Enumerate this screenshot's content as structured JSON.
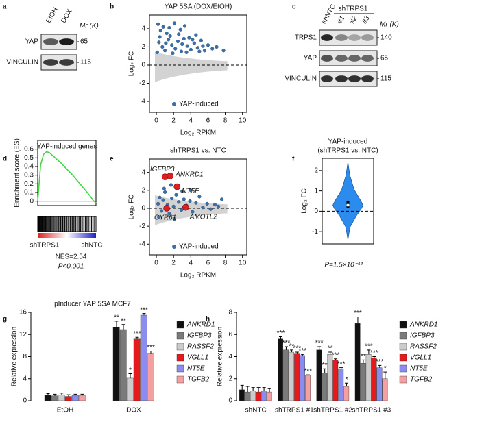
{
  "panel_labels": [
    "a",
    "b",
    "c",
    "d",
    "e",
    "f",
    "g",
    "h"
  ],
  "blot_a": {
    "lanes": [
      "EtOH",
      "DOX"
    ],
    "mr": "Mr (K)",
    "rows": [
      {
        "label": "YAP",
        "mw": 65
      },
      {
        "label": "VINCULIN",
        "mw": 115
      }
    ]
  },
  "blot_c": {
    "group": "shTRPS1",
    "lanes": [
      "shNTC",
      "#1",
      "#2",
      "#3"
    ],
    "mr": "Mr (K)",
    "rows": [
      {
        "label": "TRPS1",
        "mw": 140
      },
      {
        "label": "YAP",
        "mw": 65
      },
      {
        "label": "VINCULIN",
        "mw": 115
      }
    ]
  },
  "chart_data": [
    {
      "type": "scatter",
      "title": "YAP 5SA (DOX/EtOH)",
      "x_label": "Log₂ RPKM",
      "y_label": "Log₂ FC",
      "xlim": [
        -0.8,
        10.5
      ],
      "ylim": [
        -5.2,
        5.5
      ],
      "xticks": [
        0,
        2,
        4,
        6,
        8,
        10
      ],
      "yticks": [
        -4,
        -2,
        0,
        2,
        4
      ],
      "hline": 0,
      "series": [
        {
          "name": "YAP-induced",
          "color": "#3d6fa6",
          "x": [
            0.2,
            0.5,
            0.8,
            1.2,
            1.5,
            2.1,
            2.8,
            3.3,
            0.3,
            0.7,
            1.0,
            1.4,
            1.8,
            2.2,
            2.5,
            2.9,
            3.2,
            3.6,
            4.0,
            4.4,
            4.8,
            5.2,
            5.6,
            6.0,
            6.5,
            7.0,
            7.8,
            0.1,
            0.4,
            1.6,
            2.6,
            3.8,
            4.6,
            5.0,
            1.1,
            1.9,
            3.0,
            3.5,
            4.2,
            5.4
          ],
          "values": [
            4.5,
            3.8,
            4.2,
            3.5,
            4.1,
            4.6,
            3.9,
            4.3,
            2.5,
            2.0,
            1.6,
            2.8,
            2.2,
            1.8,
            2.6,
            1.5,
            2.9,
            2.1,
            1.7,
            2.4,
            1.9,
            2.7,
            1.6,
            2.2,
            1.8,
            2.0,
            1.6,
            1.4,
            3.1,
            3.2,
            3.4,
            3.0,
            3.3,
            1.5,
            2.4,
            1.3,
            2.3,
            1.4,
            2.8,
            2.1
          ]
        }
      ]
    },
    {
      "type": "line",
      "title": "YAP-induced genes",
      "y_label": "Enrichment score (ES)",
      "color": "#44d444",
      "xlim": [
        0,
        100
      ],
      "ylim": [
        -0.05,
        0.7
      ],
      "yticks": [
        0,
        0.1,
        0.2,
        0.3,
        0.4,
        0.5,
        0.6
      ],
      "x": [
        0,
        5,
        10,
        15,
        20,
        30,
        40,
        50,
        60,
        70,
        80,
        90,
        95,
        100
      ],
      "values": [
        0,
        0.42,
        0.54,
        0.57,
        0.56,
        0.5,
        0.44,
        0.37,
        0.3,
        0.22,
        0.14,
        0.06,
        0.01,
        -0.02
      ],
      "left_label": "shTRPS1",
      "right_label": "shNTC",
      "nes": "NES=2.54",
      "p": "P<0.001"
    },
    {
      "type": "scatter",
      "title": "shTRPS1 vs. NTC",
      "x_label": "Log₂ RPKM",
      "y_label": "Log₂ FC",
      "xlim": [
        -0.8,
        10.5
      ],
      "ylim": [
        -5.2,
        5.5
      ],
      "xticks": [
        0,
        2,
        4,
        6,
        8,
        10
      ],
      "yticks": [
        -4,
        -2,
        0,
        2,
        4
      ],
      "hline": 0,
      "series": [
        {
          "name": "YAP-induced",
          "color": "#3d6fa6",
          "x": [
            0.2,
            0.4,
            0.6,
            0.8,
            1.0,
            1.3,
            1.5,
            1.8,
            2.0,
            2.3,
            2.6,
            2.9,
            3.2,
            3.5,
            3.9,
            4.2,
            4.6,
            5.0,
            5.4,
            5.9,
            6.3,
            6.8,
            7.2,
            0.3,
            0.9,
            1.7,
            2.1,
            3.0,
            4.0,
            7.6
          ],
          "values": [
            0.5,
            1.2,
            -0.3,
            0.9,
            1.8,
            0.4,
            -0.6,
            1.1,
            0.2,
            1.5,
            0.7,
            -0.2,
            1.0,
            0.3,
            0.8,
            -0.4,
            0.6,
            1.3,
            0.1,
            0.5,
            -0.1,
            0.4,
            0.2,
            -1.0,
            2.2,
            2.6,
            -1.2,
            1.9,
            2.0,
            1.0
          ]
        }
      ],
      "highlights": {
        "color": "#e02020",
        "labels": [
          "IGFBP3",
          "ANKRD1",
          "NT5E",
          "CYR61",
          "AMOTL2"
        ],
        "x": [
          1.0,
          1.6,
          2.4,
          1.2,
          3.4
        ],
        "values": [
          3.5,
          3.6,
          2.4,
          0.0,
          0.1
        ]
      }
    },
    {
      "type": "violin",
      "title": "YAP-induced",
      "subtitle": "(shTRPS1 vs. NTC)",
      "y_label": "Log₂ FC",
      "color": "#2b8cee",
      "ylim": [
        -1.6,
        2.6
      ],
      "yticks": [
        -1,
        0,
        1,
        2
      ],
      "hline": 0,
      "stats": {
        "min": -1.4,
        "q1": 0.15,
        "median": 0.3,
        "q3": 0.5,
        "max": 2.4
      },
      "p": "P=1.5×10⁻¹⁴"
    },
    {
      "type": "bar",
      "title": "pInducer YAP 5SA MCF7",
      "y_label": "Relative expression",
      "categories": [
        "EtOH",
        "DOX"
      ],
      "ylim": [
        0,
        16
      ],
      "yticks": [
        0,
        4,
        8,
        12,
        16
      ],
      "series": [
        {
          "name": "ANKRD1",
          "color": "#111111",
          "values": [
            1.0,
            13.3
          ],
          "errors": [
            0.3,
            1.1
          ],
          "significance": [
            null,
            "**"
          ]
        },
        {
          "name": "IGFBP3",
          "color": "#7a7a7a",
          "values": [
            0.9,
            12.9
          ],
          "errors": [
            0.3,
            0.9
          ],
          "significance": [
            null,
            "**"
          ]
        },
        {
          "name": "RASSF2",
          "color": "#cccccc",
          "values": [
            1.1,
            4.1
          ],
          "errors": [
            0.3,
            0.8
          ],
          "significance": [
            null,
            "*"
          ]
        },
        {
          "name": "VGLL1",
          "color": "#e41a1c",
          "values": [
            0.8,
            11.2
          ],
          "errors": [
            0.3,
            0.3
          ],
          "significance": [
            null,
            "***"
          ]
        },
        {
          "name": "NT5E",
          "color": "#8a8cf0",
          "values": [
            1.0,
            15.5
          ],
          "errors": [
            0.2,
            0.3
          ],
          "significance": [
            null,
            "***"
          ]
        },
        {
          "name": "TGFB2",
          "color": "#f4a0a0",
          "values": [
            1.0,
            8.6
          ],
          "errors": [
            0.2,
            0.4
          ],
          "significance": [
            null,
            "***"
          ]
        }
      ]
    },
    {
      "type": "bar",
      "y_label": "Relative expression",
      "categories": [
        "shNTC",
        "shTRPS1 #1",
        "shTRPS1 #2",
        "shTRPS1 #3"
      ],
      "ylim": [
        0,
        8
      ],
      "yticks": [
        0,
        2,
        4,
        6,
        8
      ],
      "series": [
        {
          "name": "ANKRD1",
          "color": "#111111",
          "values": [
            1.0,
            5.6,
            4.6,
            7.0
          ],
          "errors": [
            0.4,
            0.2,
            0.3,
            0.6
          ],
          "significance": [
            null,
            "***",
            "***",
            "***"
          ]
        },
        {
          "name": "IGFBP3",
          "color": "#7a7a7a",
          "values": [
            0.8,
            4.6,
            2.5,
            3.4
          ],
          "errors": [
            0.5,
            0.3,
            0.4,
            0.3
          ],
          "significance": [
            null,
            "***",
            "**",
            "**"
          ]
        },
        {
          "name": "RASSF2",
          "color": "#cccccc",
          "values": [
            0.9,
            4.4,
            4.2,
            4.2
          ],
          "errors": [
            0.3,
            0.2,
            0.2,
            0.4
          ],
          "significance": [
            null,
            "**",
            "**",
            "***"
          ]
        },
        {
          "name": "VGLL1",
          "color": "#e41a1c",
          "values": [
            0.8,
            4.3,
            3.7,
            3.9
          ],
          "errors": [
            0.4,
            0.1,
            0.1,
            0.1
          ],
          "significance": [
            null,
            "***",
            "***",
            "***"
          ]
        },
        {
          "name": "NT5E",
          "color": "#8a8cf0",
          "values": [
            0.9,
            4.1,
            2.9,
            3.0
          ],
          "errors": [
            0.3,
            0.1,
            0.1,
            0.2
          ],
          "significance": [
            null,
            "***",
            "***",
            "***"
          ]
        },
        {
          "name": "TGFB2",
          "color": "#f4a0a0",
          "values": [
            0.8,
            2.3,
            1.3,
            2.0
          ],
          "errors": [
            0.3,
            0.05,
            0.3,
            0.6
          ],
          "significance": [
            null,
            "***",
            "*",
            "*"
          ]
        }
      ]
    }
  ]
}
